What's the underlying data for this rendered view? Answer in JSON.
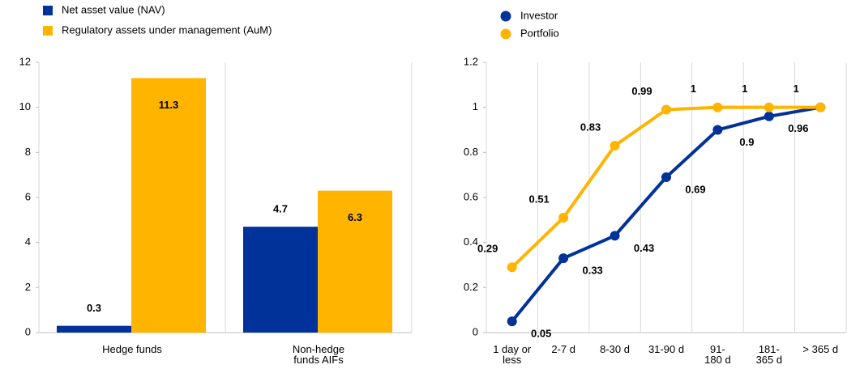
{
  "chart_data": [
    {
      "type": "bar",
      "categories": [
        "Hedge funds",
        "Non-hedge funds AIFs"
      ],
      "series": [
        {
          "name": "Net asset value (NAV)",
          "color": "#003299",
          "values": [
            0.3,
            4.7
          ]
        },
        {
          "name": "Regulatory assets under management (AuM)",
          "color": "#ffb400",
          "values": [
            11.3,
            6.3
          ]
        }
      ],
      "ylim": [
        0,
        12
      ],
      "yticks": [
        0,
        2,
        4,
        6,
        8,
        10,
        12
      ],
      "legend": "top-left"
    },
    {
      "type": "line",
      "categories": [
        "1 day or\nless",
        "2-7 d",
        "8-30 d",
        "31-90 d",
        "91-\n180 d",
        "181-\n365 d",
        "> 365 d"
      ],
      "series": [
        {
          "name": "Investor",
          "color": "#003299",
          "values": [
            0.05,
            0.33,
            0.43,
            0.69,
            0.9,
            0.96,
            1
          ]
        },
        {
          "name": "Portfolio",
          "color": "#ffb400",
          "values": [
            0.29,
            0.51,
            0.83,
            0.99,
            1,
            1,
            1
          ]
        }
      ],
      "ylim": [
        0,
        1.2
      ],
      "yticks": [
        0,
        0.2,
        0.4,
        0.6,
        0.8,
        1,
        1.2
      ],
      "legend": "top-left"
    }
  ]
}
